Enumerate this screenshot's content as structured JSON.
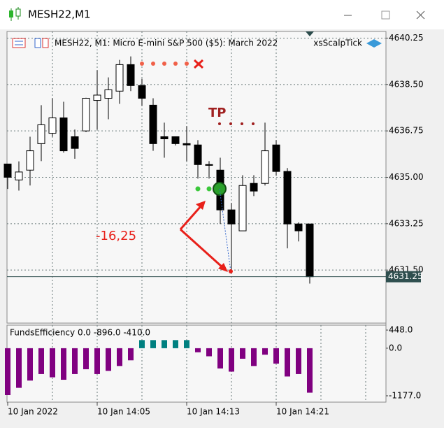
{
  "window": {
    "title": "MESH22,M1"
  },
  "chart_data": [
    {
      "type": "candlestick",
      "header": "MESH22, M1:  Micro E-mini S&P 500 ($5): March 2022",
      "indicator": "xsScalpTick",
      "annotations": [
        "TP",
        "-16,25"
      ],
      "categories": [
        "10 Jan 2022",
        null,
        null,
        null,
        null,
        null,
        null,
        null,
        "10 Jan 14:05",
        null,
        null,
        null,
        null,
        null,
        null,
        null,
        "10 Jan 14:13",
        null,
        null,
        null,
        null,
        null,
        null,
        null,
        "10 Jan 14:21",
        null,
        null,
        null
      ],
      "open": [
        4635.5,
        4634.9,
        4635.27,
        4636.27,
        4636.66,
        4637.24,
        4636.53,
        4636.75,
        4637.9,
        4637.98,
        4638.25,
        4639.25,
        4638.46,
        4637.72,
        4636.53,
        4636.53,
        4636.27,
        4636.22,
        4635.48,
        4635.27,
        4633.77,
        4632.98,
        4634.77,
        4634.77,
        4636.22,
        4635.22,
        4633.24,
        4633.24
      ],
      "high": [
        4635.5,
        4635.6,
        4636.53,
        4637.72,
        4637.98,
        4637.85,
        4636.8,
        4638.0,
        4639.04,
        4638.77,
        4639.43,
        4639.56,
        4638.72,
        4637.98,
        4637.06,
        4636.53,
        4636.93,
        4636.4,
        4635.61,
        4635.74,
        4634.03,
        4635.08,
        4635.08,
        4637.06,
        4636.4,
        4635.35,
        4633.3,
        4633.24
      ],
      "low": [
        4634.56,
        4634.5,
        4634.69,
        4635.61,
        4636.53,
        4635.93,
        4635.7,
        4636.7,
        4636.8,
        4637.19,
        4637.77,
        4638.25,
        4637.7,
        4636.0,
        4635.74,
        4636.2,
        4635.61,
        4634.95,
        4634.95,
        4633.24,
        4631.5,
        4632.98,
        4634.29,
        4634.69,
        4635.08,
        4632.32,
        4632.58,
        4630.99
      ],
      "close": [
        4635.0,
        4635.2,
        4636.0,
        4636.98,
        4637.24,
        4636.0,
        4636.09,
        4637.98,
        4638.1,
        4638.3,
        4639.25,
        4638.46,
        4637.98,
        4636.27,
        4636.45,
        4636.27,
        4636.22,
        4635.48,
        4635.45,
        4633.77,
        4633.24,
        4634.69,
        4634.48,
        4636.0,
        4635.22,
        4633.24,
        4632.98,
        4631.25
      ],
      "up_color": "#ffffff",
      "down_color": "#000000",
      "ylim": [
        4629.5,
        4640.5
      ],
      "yticks": [
        {
          "value": 4631.5,
          "label": "4631.50"
        },
        4633.25,
        {
          "value": 4635,
          "label": "4635.00"
        },
        4636.75,
        {
          "value": 4638.5,
          "label": "4638.50"
        },
        4640.25
      ],
      "last_price": 4631.25,
      "grid": true
    },
    {
      "type": "bar",
      "title": "FundsEfficiency 0.0 -896.0 -410.0",
      "values": [
        -1160,
        -980,
        -800,
        -640,
        -720,
        -780,
        -640,
        -520,
        -640,
        -560,
        -440,
        -300,
        200,
        200,
        200,
        200,
        200,
        -100,
        -200,
        -500,
        -580,
        -260,
        -440,
        -160,
        -380,
        -700,
        -640,
        -1100
      ],
      "positive_color": "#008080",
      "negative_color": "#800080",
      "ylim": [
        -1333,
        569
      ],
      "yticks": [
        {
          "value": 448,
          "label": "448.0"
        },
        {
          "value": 0,
          "label": "0.0"
        },
        {
          "value": -1177,
          "label": "-1177.0"
        }
      ],
      "grid": true
    }
  ]
}
